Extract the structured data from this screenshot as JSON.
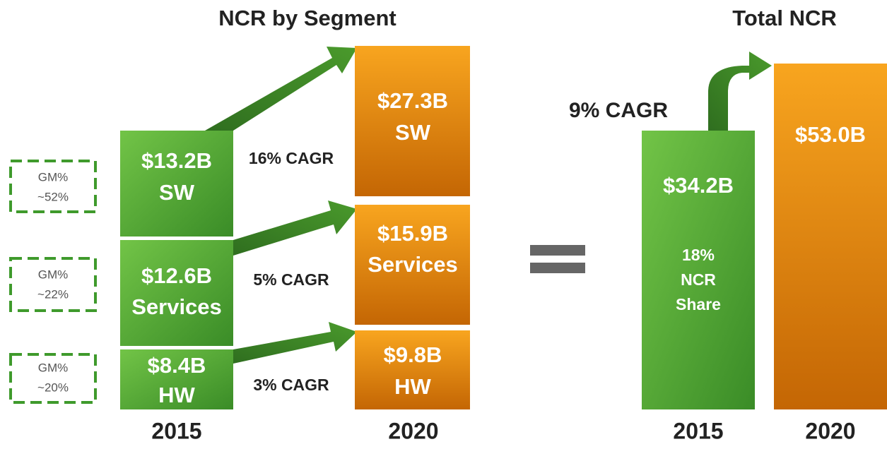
{
  "segments_panel": {
    "title": "NCR by Segment",
    "years": [
      "2015",
      "2020"
    ],
    "segments": [
      {
        "name": "SW",
        "value_2015": "$13.2B",
        "value_2020": "$27.3B",
        "cagr": "16% CAGR",
        "gm_label": "GM%",
        "gm_value": "~52%"
      },
      {
        "name": "Services",
        "value_2015": "$12.6B",
        "value_2020": "$15.9B",
        "cagr": "5% CAGR",
        "gm_label": "GM%",
        "gm_value": "~22%"
      },
      {
        "name": "HW",
        "value_2015": "$8.4B",
        "value_2020": "$9.8B",
        "cagr": "3% CAGR",
        "gm_label": "GM%",
        "gm_value": "~20%"
      }
    ]
  },
  "total_panel": {
    "title": "Total NCR",
    "years": [
      "2015",
      "2020"
    ],
    "cagr": "9% CAGR",
    "value_2015": "$34.2B",
    "value_2020": "$53.0B",
    "share_lines": [
      "18%",
      "NCR",
      "Share"
    ]
  }
}
